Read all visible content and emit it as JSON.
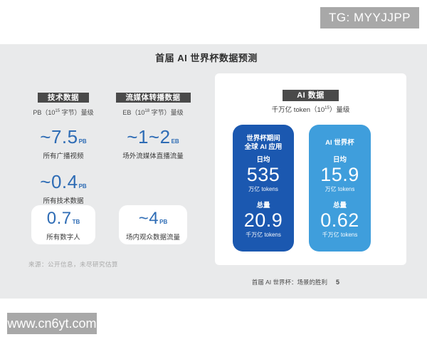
{
  "watermark_top": {
    "label": "TG: MYYJJPP"
  },
  "watermark_bottom": {
    "label": "www.cn6yt.com"
  },
  "page": {
    "title": "首届 AI 世界杯数据预测",
    "source_note": "来源：公开信息，未尽研究估算",
    "footer": {
      "text": "首届 AI 世界杯：场景的胜利",
      "page_no": "5"
    }
  },
  "tech": {
    "badge": "技术数据",
    "subtitle": {
      "pre": "PB（10",
      "sup": "15",
      "post": " 字节）量级"
    },
    "stats": [
      {
        "value": "~7.5",
        "unit": "PB",
        "label": "所有广播视频"
      },
      {
        "value": "~0.4",
        "unit": "PB",
        "label": "所有技术数据"
      }
    ],
    "card": {
      "value": "0.7",
      "unit": "TB",
      "label": "所有数字人"
    }
  },
  "stream": {
    "badge": "流媒体转播数据",
    "subtitle": {
      "pre": "EB（10",
      "sup": "18",
      "post": " 字节）量级"
    },
    "stats": [
      {
        "value": "~1~2",
        "unit": "EB",
        "label": "场外流媒体直播流量"
      }
    ],
    "card": {
      "value": "~4",
      "unit": "PB",
      "label": "场内观众数据流量"
    }
  },
  "ai": {
    "badge": "AI 数据",
    "subtitle": {
      "pre": "千万亿 token（10",
      "sup": "15",
      "post": "）量级"
    },
    "cards": [
      {
        "title_line1": "世界杯期间",
        "title_line2": "全球 AI 应用",
        "daily_label": "日均",
        "daily_value": "535",
        "daily_unit": "万亿 tokens",
        "total_label": "总量",
        "total_value": "20.9",
        "total_unit": "千万亿 tokens"
      },
      {
        "title_line1": "AI 世界杯",
        "title_line2": "",
        "daily_label": "日均",
        "daily_value": "15.9",
        "daily_unit": "万亿 tokens",
        "total_label": "总量",
        "total_value": "0.62",
        "total_unit": "千万亿 tokens"
      }
    ]
  },
  "colors": {
    "accent_blue": "#2e6cb5",
    "card_dark_blue": "#1b58b0",
    "card_light_blue": "#3f9edc",
    "badge_dark": "#4a4a4a",
    "panel_gray": "#e9eaeb",
    "watermark_gray": "#a8a8a8"
  },
  "chart_data": {
    "type": "table",
    "title": "首届 AI 世界杯数据预测",
    "groups": [
      {
        "name": "技术数据",
        "scale": "PB（10^15 字节）量级",
        "items": [
          {
            "label": "所有广播视频",
            "value": "~7.5",
            "unit": "PB"
          },
          {
            "label": "所有技术数据",
            "value": "~0.4",
            "unit": "PB"
          },
          {
            "label": "所有数字人",
            "value": "0.7",
            "unit": "TB"
          }
        ]
      },
      {
        "name": "流媒体转播数据",
        "scale": "EB（10^18 字节）量级",
        "items": [
          {
            "label": "场外流媒体直播流量",
            "value": "~1~2",
            "unit": "EB"
          },
          {
            "label": "场内观众数据流量",
            "value": "~4",
            "unit": "PB"
          }
        ]
      },
      {
        "name": "AI 数据",
        "scale": "千万亿 token（10^15）量级",
        "items": [
          {
            "label": "世界杯期间全球 AI 应用 — 日均",
            "value": "535",
            "unit": "万亿 tokens"
          },
          {
            "label": "世界杯期间全球 AI 应用 — 总量",
            "value": "20.9",
            "unit": "千万亿 tokens"
          },
          {
            "label": "AI 世界杯 — 日均",
            "value": "15.9",
            "unit": "万亿 tokens"
          },
          {
            "label": "AI 世界杯 — 总量",
            "value": "0.62",
            "unit": "千万亿 tokens"
          }
        ]
      }
    ],
    "source": "来源：公开信息，未尽研究估算"
  }
}
